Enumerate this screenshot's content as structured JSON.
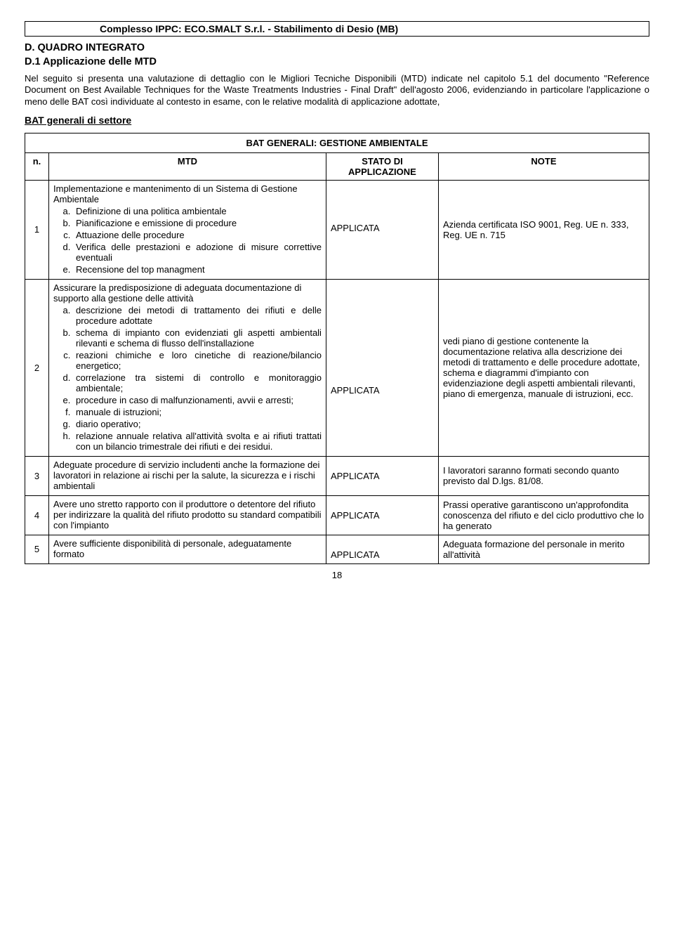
{
  "header": {
    "title": "Complesso IPPC: ECO.SMALT S.r.l.  - Stabilimento di Desio (MB)"
  },
  "section": {
    "letter": "D. QUADRO INTEGRATO",
    "sub": "D.1 Applicazione delle MTD"
  },
  "intro": "Nel seguito si presenta una valutazione di dettaglio con le Migliori Tecniche Disponibili (MTD) indicate nel capitolo 5.1 del documento \"Reference Document on Best Available Techniques for the Waste Treatments Industries - Final Draft\" dell'agosto 2006, evidenziando in particolare l'applicazione o meno delle BAT così individuate al contesto in esame, con le relative modalità di applicazione adottate,",
  "bat_section_title": "BAT generali di settore",
  "table": {
    "caption": "BAT GENERALI: GESTIONE AMBIENTALE",
    "headers": {
      "n": "n.",
      "mtd": "MTD",
      "status": "STATO DI APPLICAZIONE",
      "note": "NOTE"
    },
    "status_label": "APPLICATA",
    "rows": [
      {
        "n": "1",
        "intro": "Implementazione e mantenimento di un Sistema di Gestione Ambientale",
        "items": [
          "Definizione di una politica ambientale",
          "Pianificazione e emissione di procedure",
          "Attuazione delle procedure",
          "Verifica delle prestazioni e adozione di misure correttive eventuali",
          "Recensione del top managment"
        ],
        "note": "Azienda certificata ISO 9001, Reg. UE n. 333, Reg. UE n. 715"
      },
      {
        "n": "2",
        "intro": "Assicurare la predisposizione di adeguata documentazione di supporto alla gestione delle attività",
        "items": [
          "descrizione dei metodi di trattamento dei rifiuti e delle procedure adottate",
          "schema di impianto con evidenziati gli aspetti ambientali rilevanti e schema di flusso dell'installazione",
          "reazioni chimiche e loro cinetiche di reazione/bilancio energetico;",
          "correlazione tra sistemi di controllo e monitoraggio ambientale;",
          "procedure in caso di malfunzionamenti, avvii e arresti;",
          "manuale di istruzioni;",
          "diario operativo;",
          "relazione annuale relativa all'attività svolta e ai rifiuti trattati con un bilancio trimestrale dei rifiuti e dei residui."
        ],
        "note": "vedi piano di gestione contenente la documentazione relativa alla descrizione dei metodi di trattamento e delle procedure adottate, schema e diagrammi d'impianto con evidenziazione degli aspetti ambientali rilevanti, piano di emergenza, manuale di istruzioni, ecc."
      },
      {
        "n": "3",
        "intro": "Adeguate procedure di servizio includenti anche la formazione dei lavoratori in relazione ai rischi per la salute, la sicurezza e i rischi ambientali",
        "items": [],
        "note": "I lavoratori saranno formati secondo quanto previsto dal D.lgs. 81/08."
      },
      {
        "n": "4",
        "intro": "Avere uno stretto rapporto con il produttore o detentore del rifiuto per indirizzare la qualità del rifiuto prodotto su standard compatibili con l'impianto",
        "items": [],
        "note": "Prassi operative garantiscono un'approfondita conoscenza del rifiuto e del ciclo produttivo che lo ha generato"
      },
      {
        "n": "5",
        "intro": "Avere sufficiente disponibilità di personale, adeguatamente formato",
        "items": [],
        "note": "Adeguata formazione del personale in merito all'attività"
      }
    ]
  },
  "page_number": "18"
}
